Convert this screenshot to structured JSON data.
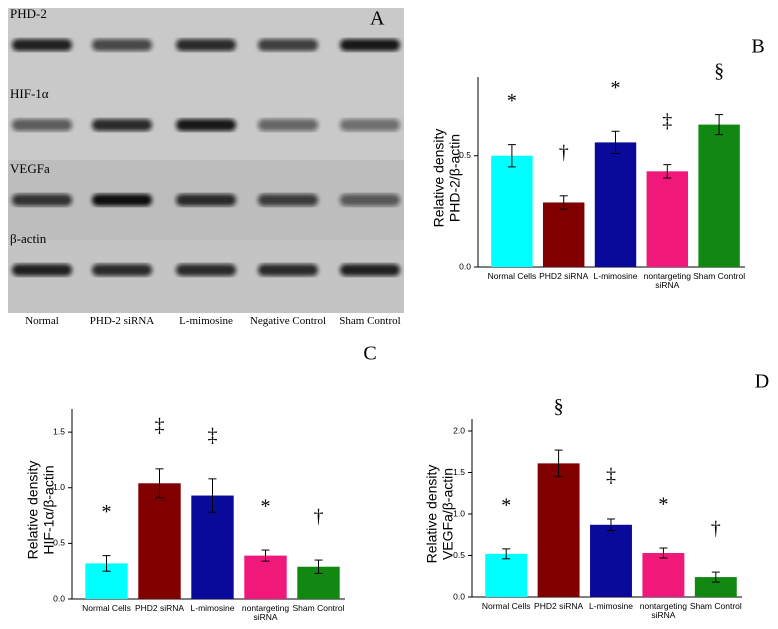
{
  "blot": {
    "panel_label": "A",
    "rows": [
      "PHD-2",
      "HIF-1α",
      "VEGFa",
      "β-actin"
    ],
    "lanes": [
      "Normal",
      "PHD-2 siRNA",
      "L-mimosine",
      "Negative Control",
      "Sham Control"
    ]
  },
  "chart_data": [
    {
      "type": "bar",
      "panel_label": "B",
      "ylabel": [
        "Relative density",
        "PHD-2/β-actin"
      ],
      "categories": [
        "Normal Cells",
        "PHD2 siRNA",
        "L-mimosine",
        "nontargeting siRNA",
        "Sham Control"
      ],
      "values": [
        0.5,
        0.29,
        0.56,
        0.43,
        0.64
      ],
      "errors": [
        0.05,
        0.03,
        0.05,
        0.03,
        0.045
      ],
      "colors": [
        "#00ffff",
        "#800000",
        "#0a0a9a",
        "#f0187a",
        "#118811"
      ],
      "annotations": [
        "*",
        "†",
        "*",
        "‡",
        "§"
      ],
      "ylim": [
        0,
        0.8
      ],
      "yticks": [
        {
          "value": 0,
          "label": "0.0"
        },
        0.5
      ]
    },
    {
      "type": "bar",
      "panel_label": "C",
      "ylabel": [
        "Relative density",
        "HIF-1α/β-actin"
      ],
      "categories": [
        "Normal Cells",
        "PHD2 siRNA",
        "L-mimosine",
        "nontargeting siRNA",
        "Sham Control"
      ],
      "values": [
        0.32,
        1.04,
        0.93,
        0.39,
        0.29
      ],
      "errors": [
        0.07,
        0.13,
        0.15,
        0.05,
        0.06
      ],
      "colors": [
        "#00ffff",
        "#800000",
        "#0a0a9a",
        "#f0187a",
        "#118811"
      ],
      "annotations": [
        "*",
        "‡",
        "‡",
        "*",
        "†"
      ],
      "ylim": [
        0,
        1.6
      ],
      "yticks": [
        {
          "value": 0,
          "label": "0.0"
        },
        0.5,
        {
          "value": 1,
          "label": "1.0"
        },
        1.5
      ]
    },
    {
      "type": "bar",
      "panel_label": "D",
      "ylabel": [
        "Relative density",
        "VEGFa/β-actin"
      ],
      "categories": [
        "Normal Cells",
        "PHD2 siRNA",
        "L-mimosine",
        "nontargeting siRNA",
        "Sham Control"
      ],
      "values": [
        0.52,
        1.61,
        0.87,
        0.53,
        0.24
      ],
      "errors": [
        0.06,
        0.16,
        0.07,
        0.06,
        0.06
      ],
      "colors": [
        "#00ffff",
        "#800000",
        "#0a0a9a",
        "#f0187a",
        "#118811"
      ],
      "annotations": [
        "*",
        "§",
        "‡",
        "*",
        "†"
      ],
      "ylim": [
        0,
        2
      ],
      "yticks": [
        {
          "value": 0,
          "label": "0.0"
        },
        0.5,
        {
          "value": 1,
          "label": "1.0"
        },
        1.5,
        {
          "value": 2,
          "label": "2.0"
        }
      ]
    }
  ]
}
